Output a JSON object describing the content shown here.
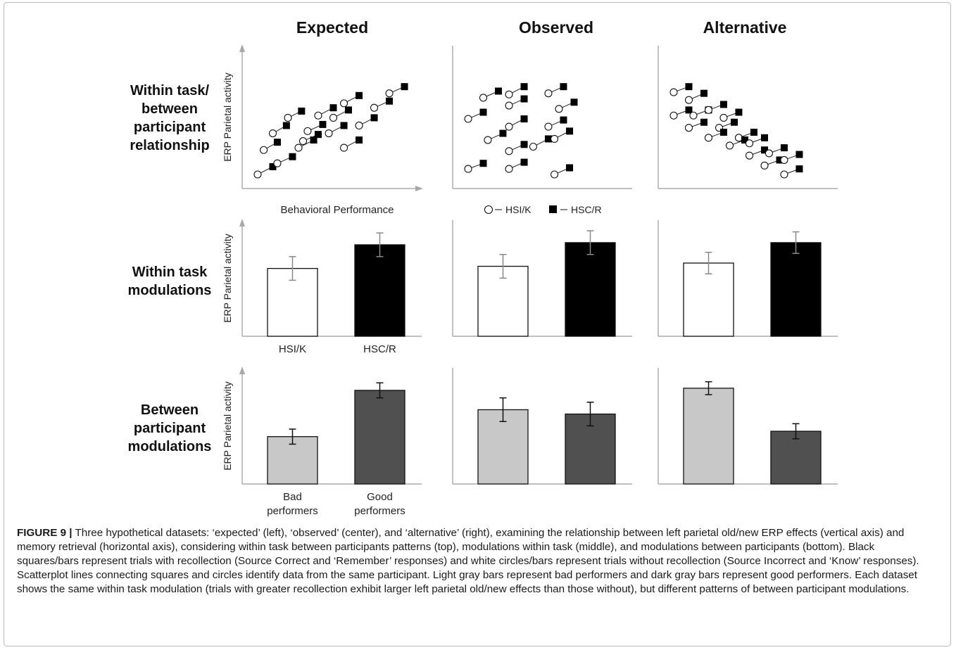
{
  "caption": {
    "label": "FIGURE 9 |",
    "text": "Three hypothetical datasets: ‘expected’ (left), ‘observed’ (center), and ‘alternative’ (right), examining the relationship between left parietal old/new ERP effects (vertical axis) and memory retrieval (horizontal axis), considering within task between participants patterns (top), modulations within task (middle), and modulations between participants (bottom). Black squares/bars represent trials with recollection (Source Correct and ‘Remember’ responses) and white circles/bars represent trials without recollection (Source Incorrect and ‘Know’ responses). Scatterplot lines connecting squares and circles identify data from the same participant. Light gray bars represent bad performers and dark gray bars represent good performers. Each dataset shows the same within task modulation (trials with greater recollection exhibit larger left parietal old/new effects than those without), but different patterns of between participant modulations."
  },
  "chart_data": {
    "type": "figure-grid",
    "columns": [
      "Expected",
      "Observed",
      "Alternative"
    ],
    "rows": [
      {
        "label": [
          "Within task/",
          "between",
          "participant",
          "relationship"
        ],
        "type": "scatter"
      },
      {
        "label": [
          "Within task",
          "modulations"
        ],
        "type": "bar"
      },
      {
        "label": [
          "Between",
          "participant",
          "modulations"
        ],
        "type": "bar"
      }
    ],
    "ylabel": "ERP Parietal activity",
    "scatter_xlabel": "Behavioral Performance",
    "legend": [
      {
        "marker": "circle",
        "label": "HSI/K",
        "fill": "#ffffff"
      },
      {
        "marker": "square",
        "label": "HSC/R",
        "fill": "#000000"
      }
    ],
    "scatter": [
      {
        "name": "Expected",
        "pairs": [
          [
            0.0,
            0.0,
            0.1,
            0.07
          ],
          [
            0.04,
            0.22,
            0.13,
            0.29
          ],
          [
            0.1,
            0.37,
            0.19,
            0.44
          ],
          [
            0.2,
            0.51,
            0.29,
            0.57
          ],
          [
            0.13,
            0.1,
            0.23,
            0.16
          ],
          [
            0.27,
            0.24,
            0.37,
            0.31
          ],
          [
            0.33,
            0.39,
            0.43,
            0.45
          ],
          [
            0.4,
            0.53,
            0.5,
            0.6
          ],
          [
            0.3,
            0.3,
            0.4,
            0.36
          ],
          [
            0.47,
            0.37,
            0.57,
            0.44
          ],
          [
            0.5,
            0.51,
            0.6,
            0.58
          ],
          [
            0.57,
            0.64,
            0.67,
            0.71
          ],
          [
            0.57,
            0.24,
            0.67,
            0.31
          ],
          [
            0.67,
            0.44,
            0.77,
            0.51
          ],
          [
            0.77,
            0.6,
            0.87,
            0.66
          ],
          [
            0.87,
            0.73,
            0.97,
            0.79
          ]
        ]
      },
      {
        "name": "Observed",
        "pairs": [
          [
            0.1,
            0.69,
            0.2,
            0.75
          ],
          [
            0.27,
            0.72,
            0.37,
            0.79
          ],
          [
            0.53,
            0.73,
            0.63,
            0.79
          ],
          [
            0.0,
            0.5,
            0.1,
            0.56
          ],
          [
            0.27,
            0.62,
            0.37,
            0.68
          ],
          [
            0.6,
            0.59,
            0.7,
            0.65
          ],
          [
            0.27,
            0.43,
            0.37,
            0.5
          ],
          [
            0.53,
            0.43,
            0.63,
            0.49
          ],
          [
            0.13,
            0.31,
            0.23,
            0.37
          ],
          [
            0.27,
            0.21,
            0.37,
            0.27
          ],
          [
            0.43,
            0.25,
            0.53,
            0.32
          ],
          [
            0.57,
            0.32,
            0.67,
            0.39
          ],
          [
            0.0,
            0.05,
            0.1,
            0.1
          ],
          [
            0.27,
            0.05,
            0.37,
            0.11
          ],
          [
            0.57,
            0.0,
            0.67,
            0.06
          ]
        ]
      },
      {
        "name": "Alternative",
        "pairs": [
          [
            0.0,
            0.74,
            0.1,
            0.79
          ],
          [
            0.1,
            0.67,
            0.2,
            0.73
          ],
          [
            0.0,
            0.53,
            0.1,
            0.58
          ],
          [
            0.13,
            0.53,
            0.23,
            0.58
          ],
          [
            0.23,
            0.58,
            0.33,
            0.63
          ],
          [
            0.1,
            0.42,
            0.2,
            0.47
          ],
          [
            0.33,
            0.51,
            0.43,
            0.56
          ],
          [
            0.3,
            0.42,
            0.4,
            0.47
          ],
          [
            0.23,
            0.33,
            0.33,
            0.38
          ],
          [
            0.43,
            0.33,
            0.53,
            0.38
          ],
          [
            0.37,
            0.26,
            0.47,
            0.31
          ],
          [
            0.5,
            0.28,
            0.6,
            0.33
          ],
          [
            0.5,
            0.17,
            0.6,
            0.22
          ],
          [
            0.63,
            0.19,
            0.73,
            0.24
          ],
          [
            0.6,
            0.08,
            0.7,
            0.13
          ],
          [
            0.73,
            0.13,
            0.83,
            0.18
          ],
          [
            0.73,
            0.0,
            0.83,
            0.05
          ]
        ]
      }
    ],
    "within_task": {
      "categories": [
        "HSI/K",
        "HSC/R"
      ],
      "colors": [
        "#ffffff",
        "#000000"
      ],
      "ylim": [
        0,
        1
      ],
      "panels": [
        {
          "name": "Expected",
          "values": [
            0.63,
            0.85
          ],
          "errors": [
            0.11,
            0.11
          ]
        },
        {
          "name": "Observed",
          "values": [
            0.65,
            0.87
          ],
          "errors": [
            0.11,
            0.11
          ]
        },
        {
          "name": "Alternative",
          "values": [
            0.68,
            0.87
          ],
          "errors": [
            0.1,
            0.1
          ]
        }
      ]
    },
    "between_participant": {
      "categories": [
        "Bad\nperformers",
        "Good\nperformers"
      ],
      "colors": [
        "#c8c8c8",
        "#505050"
      ],
      "ylim": [
        0,
        1
      ],
      "panels": [
        {
          "name": "Expected",
          "values": [
            0.44,
            0.87
          ],
          "errors": [
            0.07,
            0.07
          ]
        },
        {
          "name": "Observed",
          "values": [
            0.69,
            0.65
          ],
          "errors": [
            0.11,
            0.11
          ]
        },
        {
          "name": "Alternative",
          "values": [
            0.89,
            0.49
          ],
          "errors": [
            0.06,
            0.07
          ]
        }
      ]
    }
  }
}
